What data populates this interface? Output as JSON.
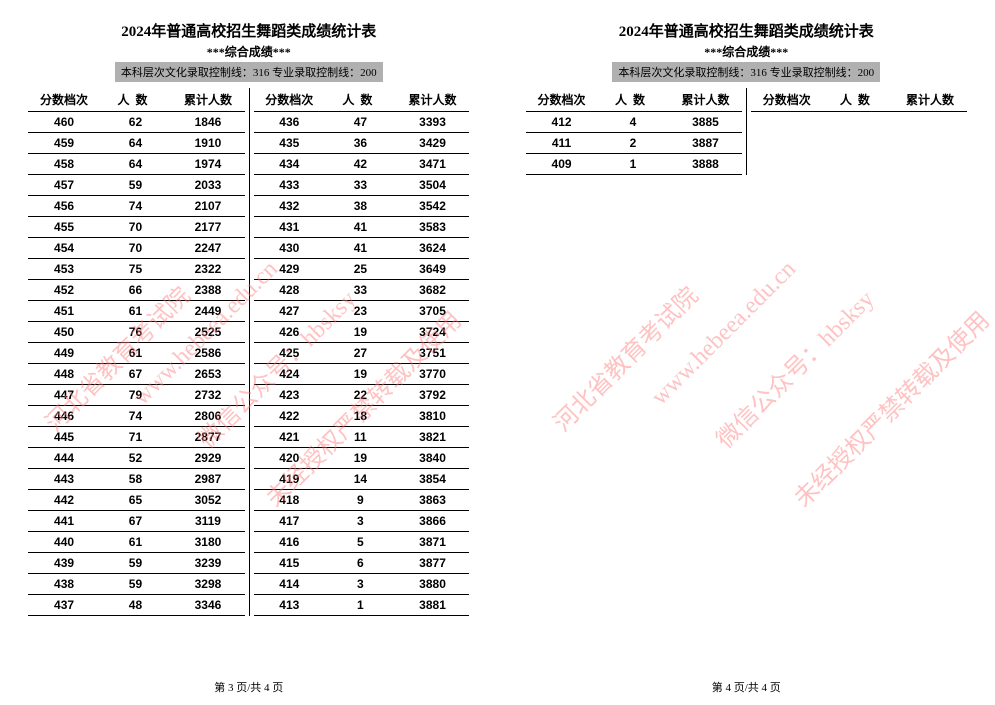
{
  "title": "2024年普通高校招生舞蹈类成绩统计表",
  "subtitle": "***综合成绩***",
  "score_line": "本科层次文化录取控制线：316 专业录取控制线：200",
  "headers": {
    "score": "分数档次",
    "count": "人数",
    "cum": "累计人数"
  },
  "page3_footer": "第 3 页/共 4 页",
  "page4_footer": "第 4 页/共 4 页",
  "watermarks": {
    "org": "河北省教育考试院",
    "url": "www.hebeea.edu.cn",
    "wechat": "微信公众号：hbsksy",
    "notice": "未经授权严禁转载及使用"
  },
  "colors": {
    "bg": "#ffffff",
    "text": "#000000",
    "header_bg": "#b0b0b0",
    "watermark": "rgba(255,120,120,0.45)",
    "border": "#000000"
  },
  "typography": {
    "title_fontsize": 15,
    "subtitle_fontsize": 12,
    "body_fontsize": 12,
    "footer_fontsize": 11
  },
  "page3_col1": [
    {
      "score": 460,
      "count": 62,
      "cum": 1846
    },
    {
      "score": 459,
      "count": 64,
      "cum": 1910
    },
    {
      "score": 458,
      "count": 64,
      "cum": 1974
    },
    {
      "score": 457,
      "count": 59,
      "cum": 2033
    },
    {
      "score": 456,
      "count": 74,
      "cum": 2107
    },
    {
      "score": 455,
      "count": 70,
      "cum": 2177
    },
    {
      "score": 454,
      "count": 70,
      "cum": 2247
    },
    {
      "score": 453,
      "count": 75,
      "cum": 2322
    },
    {
      "score": 452,
      "count": 66,
      "cum": 2388
    },
    {
      "score": 451,
      "count": 61,
      "cum": 2449
    },
    {
      "score": 450,
      "count": 76,
      "cum": 2525
    },
    {
      "score": 449,
      "count": 61,
      "cum": 2586
    },
    {
      "score": 448,
      "count": 67,
      "cum": 2653
    },
    {
      "score": 447,
      "count": 79,
      "cum": 2732
    },
    {
      "score": 446,
      "count": 74,
      "cum": 2806
    },
    {
      "score": 445,
      "count": 71,
      "cum": 2877
    },
    {
      "score": 444,
      "count": 52,
      "cum": 2929
    },
    {
      "score": 443,
      "count": 58,
      "cum": 2987
    },
    {
      "score": 442,
      "count": 65,
      "cum": 3052
    },
    {
      "score": 441,
      "count": 67,
      "cum": 3119
    },
    {
      "score": 440,
      "count": 61,
      "cum": 3180
    },
    {
      "score": 439,
      "count": 59,
      "cum": 3239
    },
    {
      "score": 438,
      "count": 59,
      "cum": 3298
    },
    {
      "score": 437,
      "count": 48,
      "cum": 3346
    }
  ],
  "page3_col2": [
    {
      "score": 436,
      "count": 47,
      "cum": 3393
    },
    {
      "score": 435,
      "count": 36,
      "cum": 3429
    },
    {
      "score": 434,
      "count": 42,
      "cum": 3471
    },
    {
      "score": 433,
      "count": 33,
      "cum": 3504
    },
    {
      "score": 432,
      "count": 38,
      "cum": 3542
    },
    {
      "score": 431,
      "count": 41,
      "cum": 3583
    },
    {
      "score": 430,
      "count": 41,
      "cum": 3624
    },
    {
      "score": 429,
      "count": 25,
      "cum": 3649
    },
    {
      "score": 428,
      "count": 33,
      "cum": 3682
    },
    {
      "score": 427,
      "count": 23,
      "cum": 3705
    },
    {
      "score": 426,
      "count": 19,
      "cum": 3724
    },
    {
      "score": 425,
      "count": 27,
      "cum": 3751
    },
    {
      "score": 424,
      "count": 19,
      "cum": 3770
    },
    {
      "score": 423,
      "count": 22,
      "cum": 3792
    },
    {
      "score": 422,
      "count": 18,
      "cum": 3810
    },
    {
      "score": 421,
      "count": 11,
      "cum": 3821
    },
    {
      "score": 420,
      "count": 19,
      "cum": 3840
    },
    {
      "score": 419,
      "count": 14,
      "cum": 3854
    },
    {
      "score": 418,
      "count": 9,
      "cum": 3863
    },
    {
      "score": 417,
      "count": 3,
      "cum": 3866
    },
    {
      "score": 416,
      "count": 5,
      "cum": 3871
    },
    {
      "score": 415,
      "count": 6,
      "cum": 3877
    },
    {
      "score": 414,
      "count": 3,
      "cum": 3880
    },
    {
      "score": 413,
      "count": 1,
      "cum": 3881
    }
  ],
  "page4_col1": [
    {
      "score": 412,
      "count": 4,
      "cum": 3885
    },
    {
      "score": 411,
      "count": 2,
      "cum": 3887
    },
    {
      "score": 409,
      "count": 1,
      "cum": 3888
    }
  ],
  "page4_col2": []
}
